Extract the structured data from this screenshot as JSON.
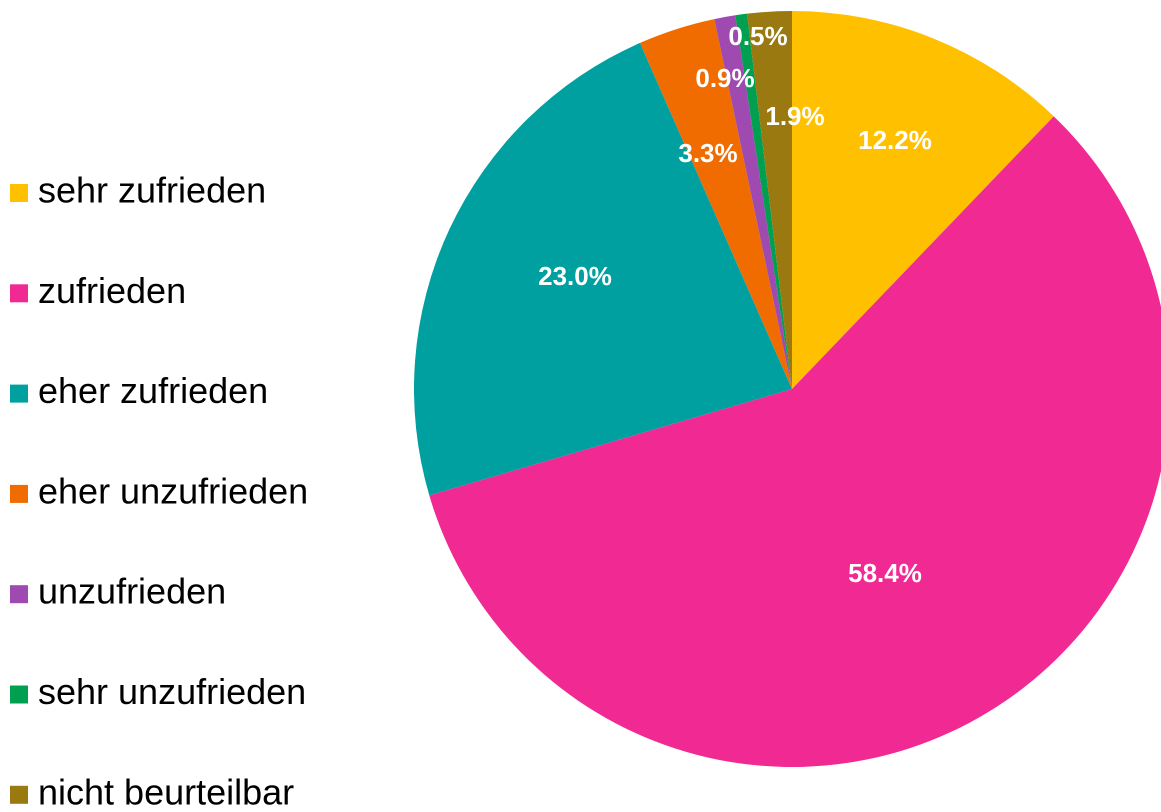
{
  "chart_data": {
    "type": "pie",
    "categories": [
      "sehr zufrieden",
      "zufrieden",
      "eher zufrieden",
      "eher unzufrieden",
      "unzufrieden",
      "sehr unzufrieden",
      "nicht beurteilbar"
    ],
    "values": [
      12.2,
      58.4,
      23.0,
      3.3,
      0.9,
      0.5,
      1.9
    ],
    "value_labels": [
      "12.2%",
      "58.4%",
      "23.0%",
      "3.3%",
      "0.9%",
      "0.5%",
      "1.9%"
    ],
    "colors": [
      "#FFC000",
      "#F12A93",
      "#00A0A0",
      "#F06C00",
      "#9E4AB0",
      "#00A050",
      "#9A7A10"
    ],
    "legend": "left"
  }
}
